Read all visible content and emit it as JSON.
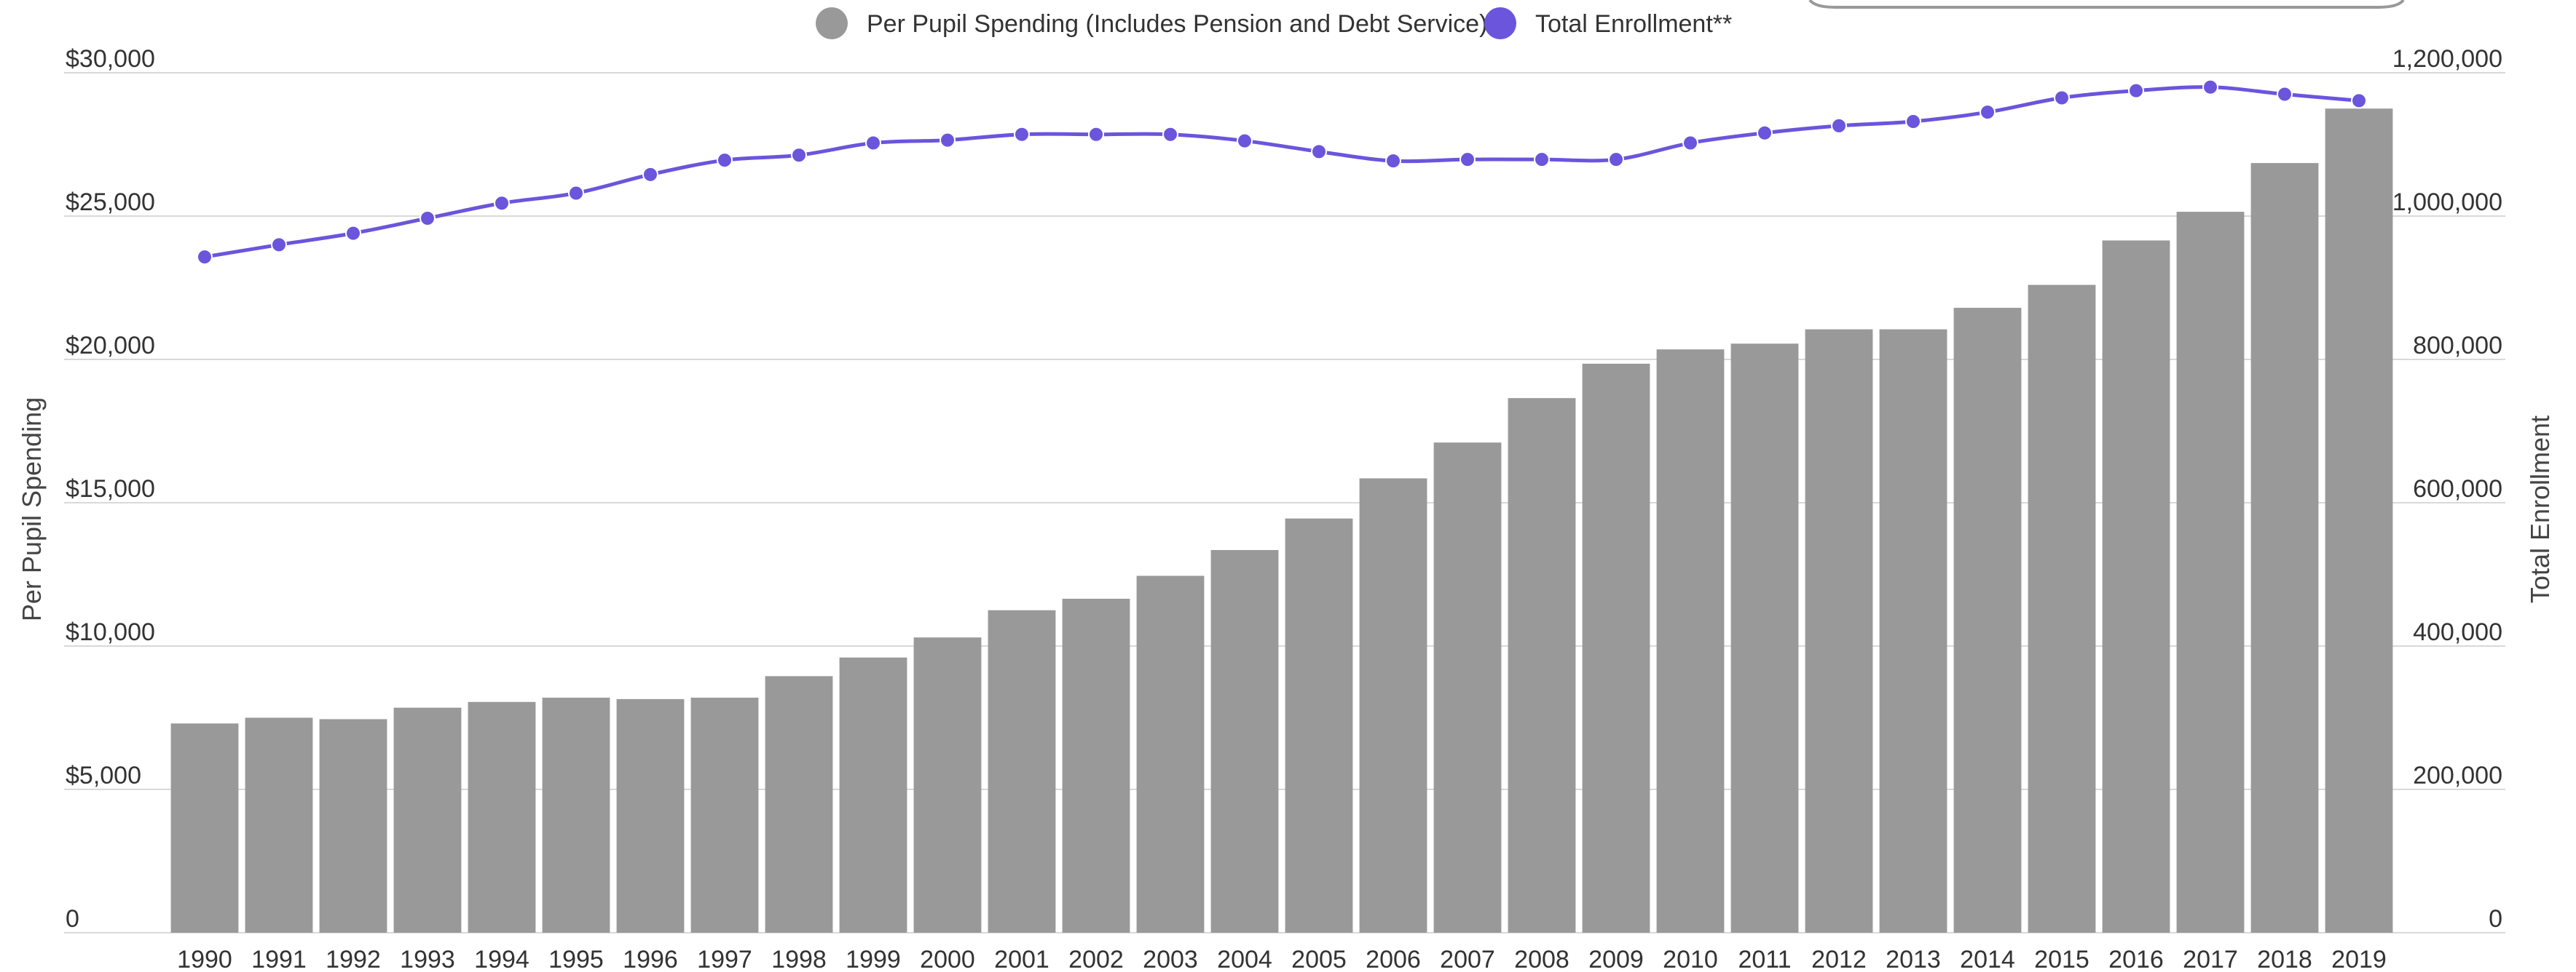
{
  "chart_data": {
    "type": "bar",
    "categories": [
      "1990",
      "1991",
      "1992",
      "1993",
      "1994",
      "1995",
      "1996",
      "1997",
      "1998",
      "1999",
      "2000",
      "2001",
      "2002",
      "2003",
      "2004",
      "2005",
      "2006",
      "2007",
      "2008",
      "2009",
      "2010",
      "2011",
      "2012",
      "2013",
      "2014",
      "2015",
      "2016",
      "2017",
      "2018",
      "2019"
    ],
    "series": [
      {
        "name": "Per Pupil Spending (Includes Pension and Debt Service)",
        "type": "bar",
        "axis": "left",
        "color": "#999999",
        "values": [
          7300,
          7500,
          7450,
          7850,
          8050,
          8200,
          8150,
          8200,
          8950,
          9600,
          10300,
          11250,
          11650,
          12450,
          13350,
          14450,
          15850,
          17100,
          18650,
          19850,
          20350,
          20550,
          21050,
          21050,
          21800,
          22600,
          24150,
          25150,
          26850,
          28750
        ]
      },
      {
        "name": "Total Enrollment**",
        "type": "line",
        "axis": "right",
        "color": "#6b55dc",
        "values": [
          943000,
          960000,
          976000,
          997000,
          1018000,
          1032000,
          1058000,
          1078000,
          1085000,
          1102000,
          1106000,
          1114000,
          1114000,
          1114000,
          1105000,
          1090000,
          1077000,
          1079000,
          1079000,
          1079000,
          1102000,
          1116000,
          1126000,
          1132000,
          1145000,
          1165000,
          1175000,
          1180000,
          1170000,
          1161000
        ]
      }
    ],
    "ylabel": "Per Pupil Spending",
    "y2label": "Total Enrollment",
    "ylim": [
      0,
      30000
    ],
    "y2lim": [
      0,
      1200000
    ],
    "yticks": [
      "0",
      "$5,000",
      "$10,000",
      "$15,000",
      "$20,000",
      "$25,000",
      "$30,000"
    ],
    "y2ticks": [
      "0",
      "200,000",
      "400,000",
      "600,000",
      "800,000",
      "1,000,000",
      "1,200,000"
    ],
    "grid": true,
    "legend_position": "top"
  }
}
